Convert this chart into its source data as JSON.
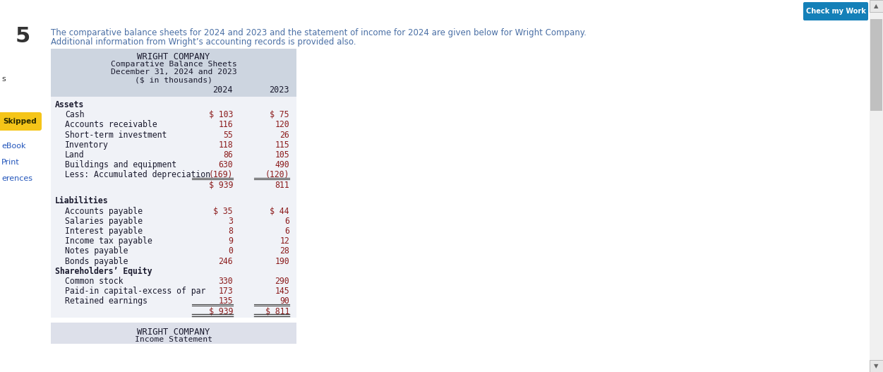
{
  "title_line1": "WRIGHT COMPANY",
  "title_line2": "Comparative Balance Sheets",
  "title_line3": "December 31, 2024 and 2023",
  "title_line4": "($ in thousands)",
  "col_header_2024": "2024",
  "col_header_2023": "2023",
  "intro_text_line1": "The comparative balance sheets for 2024 and 2023 and the statement of income for 2024 are given below for Wright Company.",
  "intro_text_line2": "Additional information from Wright’s accounting records is provided also.",
  "header_bg": "#cdd5e0",
  "table_bg": "#f0f2f7",
  "bottom_section_bg": "#dde0ea",
  "page_bg": "#ffffff",
  "scrollbar_bg": "#f0f0f0",
  "scrollbar_thumb": "#c0c0c0",
  "teal_btn": "#1480b8",
  "skipped_yellow": "#f5c518",
  "rows": [
    {
      "label": "Assets",
      "v2024": "",
      "v2023": "",
      "bold": true,
      "indent": 0
    },
    {
      "label": "Cash",
      "v2024": "$ 103",
      "v2023": "$ 75",
      "bold": false,
      "indent": 1
    },
    {
      "label": "Accounts receivable",
      "v2024": "116",
      "v2023": "120",
      "bold": false,
      "indent": 1
    },
    {
      "label": "Short-term investment",
      "v2024": "55",
      "v2023": "26",
      "bold": false,
      "indent": 1
    },
    {
      "label": "Inventory",
      "v2024": "118",
      "v2023": "115",
      "bold": false,
      "indent": 1
    },
    {
      "label": "Land",
      "v2024": "86",
      "v2023": "105",
      "bold": false,
      "indent": 1
    },
    {
      "label": "Buildings and equipment",
      "v2024": "630",
      "v2023": "490",
      "bold": false,
      "indent": 1
    },
    {
      "label": "  Less: Accumulated depreciation",
      "v2024": "(169)",
      "v2023": "(120)",
      "bold": false,
      "indent": 0,
      "underline": true
    },
    {
      "label": "",
      "v2024": "$ 939",
      "v2023": "811",
      "bold": false,
      "indent": 0,
      "total": true
    },
    {
      "label": "",
      "v2024": "",
      "v2023": "",
      "bold": false,
      "indent": 0,
      "spacer": true
    },
    {
      "label": "Liabilities",
      "v2024": "",
      "v2023": "",
      "bold": true,
      "indent": 0
    },
    {
      "label": "Accounts payable",
      "v2024": "$ 35",
      "v2023": "$ 44",
      "bold": false,
      "indent": 1
    },
    {
      "label": "Salaries payable",
      "v2024": "3",
      "v2023": "6",
      "bold": false,
      "indent": 1
    },
    {
      "label": "Interest payable",
      "v2024": "8",
      "v2023": "6",
      "bold": false,
      "indent": 1
    },
    {
      "label": "Income tax payable",
      "v2024": "9",
      "v2023": "12",
      "bold": false,
      "indent": 1
    },
    {
      "label": "Notes payable",
      "v2024": "0",
      "v2023": "28",
      "bold": false,
      "indent": 1
    },
    {
      "label": "Bonds payable",
      "v2024": "246",
      "v2023": "190",
      "bold": false,
      "indent": 1
    },
    {
      "label": "Shareholders’ Equity",
      "v2024": "",
      "v2023": "",
      "bold": true,
      "indent": 0
    },
    {
      "label": "Common stock",
      "v2024": "330",
      "v2023": "290",
      "bold": false,
      "indent": 1
    },
    {
      "label": "Paid-in capital-excess of par",
      "v2024": "173",
      "v2023": "145",
      "bold": false,
      "indent": 1
    },
    {
      "label": "Retained earnings",
      "v2024": "135",
      "v2023": "90",
      "bold": false,
      "indent": 1,
      "underline": true
    },
    {
      "label": "",
      "v2024": "$ 939",
      "v2023": "$ 811",
      "bold": false,
      "indent": 0,
      "total": true,
      "double_underline": true
    }
  ],
  "bottom_title": "WRIGHT COMPANY",
  "bottom_subtitle": "Income Statement",
  "number_color": "#8b1a1a",
  "label_color": "#1a1a2e",
  "intro_color": "#4a6fa5",
  "mono_font": "DejaVu Sans Mono"
}
